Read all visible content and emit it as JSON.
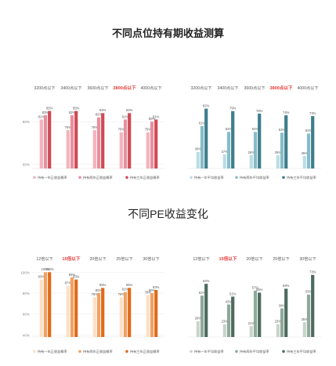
{
  "titles": {
    "top": "不同点位持有期收益测算",
    "bottom": "不同PE收益变化"
  },
  "chart_data": [
    {
      "type": "bar",
      "categories": [
        "3200点以下",
        "3400点以下",
        "3600点以下",
        "3800点以下",
        "4000点以下"
      ],
      "highlight_category": "3800点以下",
      "y_ticks": [
        "80%",
        "60%"
      ],
      "series": [
        {
          "name": "持有一年正收益概率",
          "color": "#f3b3bd",
          "values": [
            81,
            76,
            76,
            75,
            75
          ],
          "labels": [
            "81%",
            "76%",
            "76%",
            "75%",
            "75%"
          ]
        },
        {
          "name": "持有两年正收益概率",
          "color": "#e88f9c",
          "values": [
            83,
            83,
            82,
            81,
            80
          ],
          "labels": [
            "83%",
            "83%",
            "82%",
            "81%",
            "80%"
          ]
        },
        {
          "name": "持有三年正收益概率",
          "color": "#cf4a55",
          "values": [
            85,
            85,
            84,
            84,
            81
          ],
          "labels": [
            "85%",
            "85%",
            "84%",
            "84%",
            "81%"
          ]
        }
      ]
    },
    {
      "type": "bar",
      "categories": [
        "3200点以下",
        "3400点以下",
        "3600点以下",
        "3800点以下",
        "4000点以下"
      ],
      "highlight_category": "3800点以下",
      "series": [
        {
          "name": "持有一年平均收益率",
          "color": "#bcdde3",
          "values": [
            30,
            27,
            26,
            26,
            25
          ],
          "labels": [
            "30%",
            "27%",
            "26%",
            "26%",
            "25%"
          ]
        },
        {
          "name": "持有两年平均收益率",
          "color": "#86bcc8",
          "values": [
            61,
            54,
            54,
            53,
            52
          ],
          "labels": [
            "61%",
            "54%",
            "54%",
            "53%",
            "52%"
          ]
        },
        {
          "name": "持有三年平均收益率",
          "color": "#3e7e8c",
          "values": [
            82,
            79,
            76,
            74,
            73
          ],
          "labels": [
            "82%",
            "79%",
            "76%",
            "74%",
            "73%"
          ]
        }
      ]
    },
    {
      "type": "bar",
      "categories": [
        "12倍以下",
        "15倍以下",
        "20倍以下",
        "25倍以下",
        "30倍以下"
      ],
      "highlight_category": "15倍以下",
      "y_ticks": [
        "100%",
        "80%",
        "60%",
        "40%"
      ],
      "series": [
        {
          "name": "持有一年正收益概率",
          "color": "#fbe0c8",
          "values": [
            93,
            87,
            76,
            76,
            78
          ],
          "labels": [
            "93%",
            "87%",
            "76%",
            "76%",
            "78%"
          ]
        },
        {
          "name": "持有两年正收益概率",
          "color": "#f2a060",
          "values": [
            100,
            95,
            80,
            81,
            80
          ],
          "labels": [
            "100%",
            "95%",
            "80%",
            "81%",
            "80%"
          ]
        },
        {
          "name": "持有三年正收益概率",
          "color": "#e06a1a",
          "values": [
            100,
            93,
            85,
            85,
            83
          ],
          "labels": [
            "100%",
            "93%",
            "85%",
            "85%",
            "83%"
          ]
        }
      ]
    },
    {
      "type": "bar",
      "categories": [
        "12倍以下",
        "15倍以下",
        "20倍以下",
        "25倍以下",
        "30倍以下"
      ],
      "highlight_category": "15倍以下",
      "series": [
        {
          "name": "持有一年平均收益率",
          "color": "#c8d6c8",
          "values": [
            26,
            23,
            21,
            23,
            25
          ],
          "labels": [
            "26%",
            "23%",
            "21%",
            "23%",
            "25%"
          ]
        },
        {
          "name": "持有两年平均收益率",
          "color": "#8fa89a",
          "values": [
            52,
            43,
            57,
            39,
            53
          ],
          "labels": [
            "52%",
            "43%",
            "57%",
            "39%",
            "53%"
          ]
        },
        {
          "name": "持有三年平均收益率",
          "color": "#4d6b5e",
          "values": [
            64,
            51,
            55,
            59,
            73
          ],
          "labels": [
            "64%",
            "51%",
            "55%",
            "59%",
            "73%"
          ]
        }
      ]
    }
  ]
}
